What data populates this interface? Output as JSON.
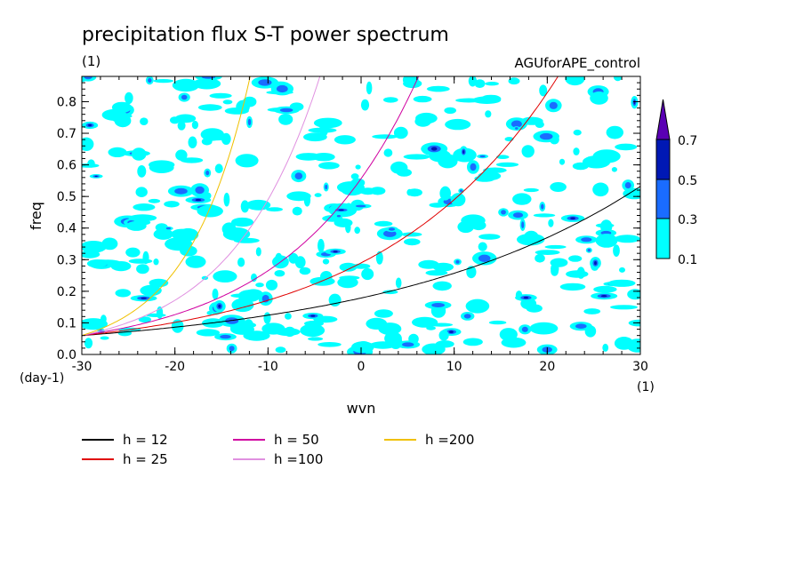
{
  "chart_data": {
    "type": "contour",
    "title": "precipitation flux S-T power spectrum",
    "units": "(1)",
    "run_name": "AGUforAPE_control",
    "xlabel": "wvn",
    "ylabel": "freq",
    "x_unit": "(1)",
    "y_unit": "(day-1)",
    "xlim": [
      -30,
      30
    ],
    "ylim": [
      0.0,
      0.88
    ],
    "x_ticks": [
      "-30",
      "-20",
      "-10",
      "0",
      "10",
      "20",
      "30"
    ],
    "y_ticks": [
      "0.0",
      "0.1",
      "0.2",
      "0.3",
      "0.4",
      "0.5",
      "0.6",
      "0.7",
      "0.8"
    ],
    "colorbar": {
      "levels": [
        "0.1",
        "0.3",
        "0.5",
        "0.7"
      ],
      "colors": [
        "#00ffff",
        "#1a6cff",
        "#0018b4",
        "#5a00b4"
      ]
    },
    "dispersion_curves": [
      {
        "label": "h = 12",
        "h": 12,
        "color": "#000000"
      },
      {
        "label": "h = 25",
        "h": 25,
        "color": "#e00000"
      },
      {
        "label": "h = 50",
        "h": 50,
        "color": "#d000a0"
      },
      {
        "label": "h =100",
        "h": 100,
        "color": "#e090e0"
      },
      {
        "label": "h =200",
        "h": 200,
        "color": "#f0c000"
      }
    ]
  }
}
